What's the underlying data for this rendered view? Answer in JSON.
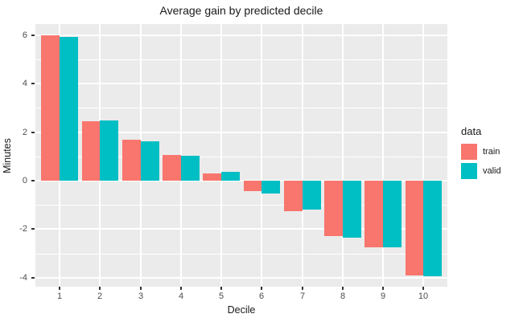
{
  "title": "Average gain by predicted decile",
  "axes": {
    "x_label": "Decile",
    "y_label": "Minutes",
    "x_tick_labels": [
      "1",
      "2",
      "3",
      "4",
      "5",
      "6",
      "7",
      "8",
      "9",
      "10"
    ],
    "y_tick_labels": [
      "6",
      "4",
      "2",
      "0",
      "-2",
      "-4"
    ],
    "y_tick_values": [
      6,
      4,
      2,
      0,
      -2,
      -4
    ]
  },
  "legend": {
    "title": "data",
    "items": [
      {
        "label": "train",
        "color": "#F8766D"
      },
      {
        "label": "valid",
        "color": "#00BFC4"
      }
    ]
  },
  "colors": {
    "panel_background": "#EBEBEB",
    "gridline": "#FFFFFF",
    "tick_label": "#4D4D4D",
    "train": "#F8766D",
    "valid": "#00BFC4"
  },
  "chart_data": {
    "type": "bar",
    "title": "Average gain by predicted decile",
    "xlabel": "Decile",
    "ylabel": "Minutes",
    "categories": [
      1,
      2,
      3,
      4,
      5,
      6,
      7,
      8,
      9,
      10
    ],
    "series": [
      {
        "name": "train",
        "color": "#F8766D",
        "values": [
          6.0,
          2.45,
          1.7,
          1.05,
          0.3,
          -0.42,
          -1.27,
          -2.28,
          -2.74,
          -3.9
        ]
      },
      {
        "name": "valid",
        "color": "#00BFC4",
        "values": [
          5.92,
          2.5,
          1.62,
          1.02,
          0.38,
          -0.52,
          -1.18,
          -2.36,
          -2.76,
          -3.95
        ]
      }
    ],
    "ylim": [
      -4.4,
      6.5
    ],
    "y_major_gridlines": [
      6,
      4,
      2,
      0,
      -2,
      -4
    ],
    "y_minor_gridlines": [
      5,
      3,
      1,
      -1,
      -3
    ],
    "grid": true,
    "legend_position": "right",
    "bar_layout": "dodged"
  }
}
